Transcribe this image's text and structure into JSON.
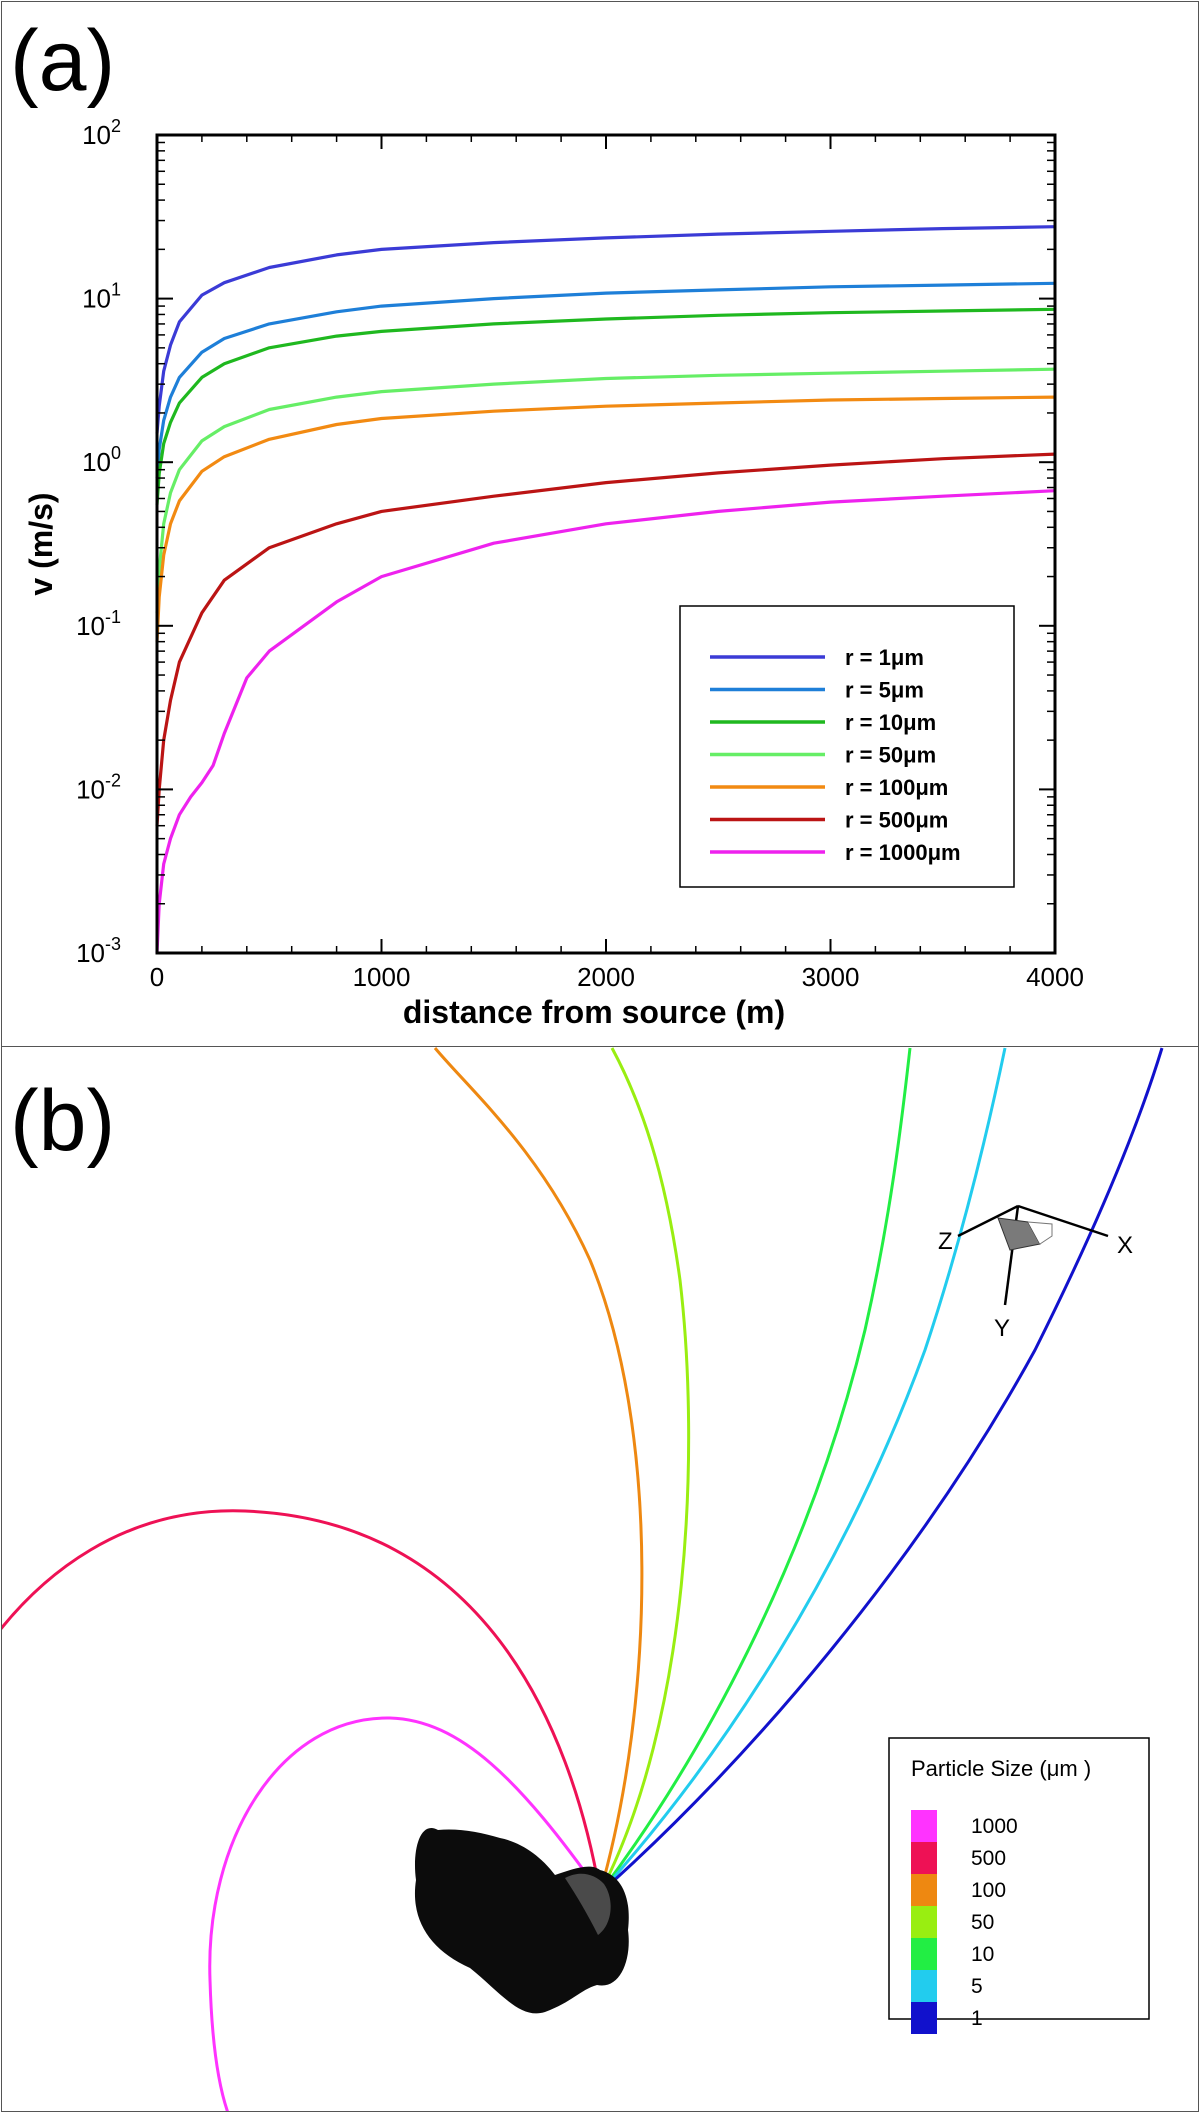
{
  "panel_a": {
    "label": "(a)"
  },
  "panel_b": {
    "label": "(b)"
  },
  "chart_data": [
    {
      "type": "line",
      "title": "",
      "xlabel": "distance from source (m)",
      "ylabel": "v (m/s)",
      "xlim": [
        0,
        4000
      ],
      "ylim": [
        0.001,
        100
      ],
      "yscale": "log",
      "x_ticks": [
        0,
        1000,
        2000,
        3000,
        4000
      ],
      "y_ticks": [
        {
          "base": "10",
          "exp": "-3",
          "value": 0.001
        },
        {
          "base": "10",
          "exp": "-2",
          "value": 0.01
        },
        {
          "base": "10",
          "exp": "-1",
          "value": 0.1
        },
        {
          "base": "10",
          "exp": "0",
          "value": 1
        },
        {
          "base": "10",
          "exp": "1",
          "value": 10
        },
        {
          "base": "10",
          "exp": "2",
          "value": 100
        }
      ],
      "legend_position": "lower-right",
      "series": [
        {
          "name": "r = 1μm",
          "color": "#3b3bd6",
          "x": [
            0,
            10,
            30,
            60,
            100,
            200,
            300,
            500,
            800,
            1000,
            1500,
            2000,
            2500,
            3000,
            3500,
            4000
          ],
          "y": [
            1.5,
            2.2,
            3.6,
            5.2,
            7.2,
            10.5,
            12.5,
            15.5,
            18.5,
            20,
            22,
            23.5,
            24.8,
            25.8,
            26.8,
            27.5
          ]
        },
        {
          "name": "r = 5μm",
          "color": "#1e7fd8",
          "x": [
            0,
            10,
            30,
            60,
            100,
            200,
            300,
            500,
            800,
            1000,
            1500,
            2000,
            2500,
            3000,
            3500,
            4000
          ],
          "y": [
            0.8,
            1.2,
            1.8,
            2.5,
            3.3,
            4.7,
            5.7,
            7,
            8.3,
            9,
            10,
            10.8,
            11.3,
            11.8,
            12.1,
            12.4
          ]
        },
        {
          "name": "r = 10μm",
          "color": "#1fb81f",
          "x": [
            0,
            10,
            30,
            60,
            100,
            200,
            300,
            500,
            800,
            1000,
            1500,
            2000,
            2500,
            3000,
            3500,
            4000
          ],
          "y": [
            0.55,
            0.85,
            1.3,
            1.75,
            2.3,
            3.3,
            4,
            5,
            5.9,
            6.3,
            7,
            7.5,
            7.9,
            8.2,
            8.4,
            8.6
          ]
        },
        {
          "name": "r = 50μm",
          "color": "#66ee66",
          "x": [
            0,
            10,
            30,
            60,
            100,
            200,
            300,
            500,
            800,
            1000,
            1500,
            2000,
            2500,
            3000,
            3500,
            4000
          ],
          "y": [
            0.12,
            0.22,
            0.42,
            0.65,
            0.9,
            1.35,
            1.65,
            2.1,
            2.5,
            2.7,
            3,
            3.25,
            3.4,
            3.5,
            3.6,
            3.7
          ]
        },
        {
          "name": "r = 100μm",
          "color": "#f28a12",
          "x": [
            0,
            10,
            30,
            60,
            100,
            200,
            300,
            500,
            800,
            1000,
            1500,
            2000,
            2500,
            3000,
            3500,
            4000
          ],
          "y": [
            0.08,
            0.15,
            0.27,
            0.42,
            0.58,
            0.88,
            1.08,
            1.38,
            1.7,
            1.85,
            2.05,
            2.2,
            2.3,
            2.4,
            2.45,
            2.5
          ]
        },
        {
          "name": "r = 500μm",
          "color": "#bb1414",
          "x": [
            0,
            10,
            30,
            60,
            100,
            200,
            300,
            500,
            800,
            1000,
            1500,
            2000,
            2500,
            3000,
            3500,
            4000
          ],
          "y": [
            0.006,
            0.01,
            0.02,
            0.035,
            0.06,
            0.12,
            0.19,
            0.3,
            0.42,
            0.5,
            0.62,
            0.75,
            0.86,
            0.96,
            1.05,
            1.12
          ]
        },
        {
          "name": "r = 1000μm",
          "color": "#ee22ee",
          "x": [
            0,
            10,
            30,
            60,
            100,
            150,
            200,
            250,
            300,
            400,
            500,
            800,
            1000,
            1500,
            2000,
            2500,
            3000,
            3500,
            4000
          ],
          "y": [
            0.001,
            0.002,
            0.0035,
            0.005,
            0.007,
            0.009,
            0.011,
            0.014,
            0.022,
            0.048,
            0.07,
            0.14,
            0.2,
            0.32,
            0.42,
            0.5,
            0.57,
            0.62,
            0.67
          ]
        }
      ]
    },
    {
      "type": "diagram",
      "title": "",
      "legend_title": "Particle Size (μm )",
      "legend_position": "lower-right",
      "axis_triad": {
        "x_label": "X",
        "y_label": "Y",
        "z_label": "Z"
      },
      "trajectories": [
        {
          "name": "1000",
          "color": "#ff33ff"
        },
        {
          "name": "500",
          "color": "#ee1155"
        },
        {
          "name": "100",
          "color": "#ee8811"
        },
        {
          "name": "50",
          "color": "#99ee11"
        },
        {
          "name": "10",
          "color": "#22ee44"
        },
        {
          "name": "5",
          "color": "#22ccee"
        },
        {
          "name": "1",
          "color": "#1111cc"
        }
      ]
    }
  ]
}
